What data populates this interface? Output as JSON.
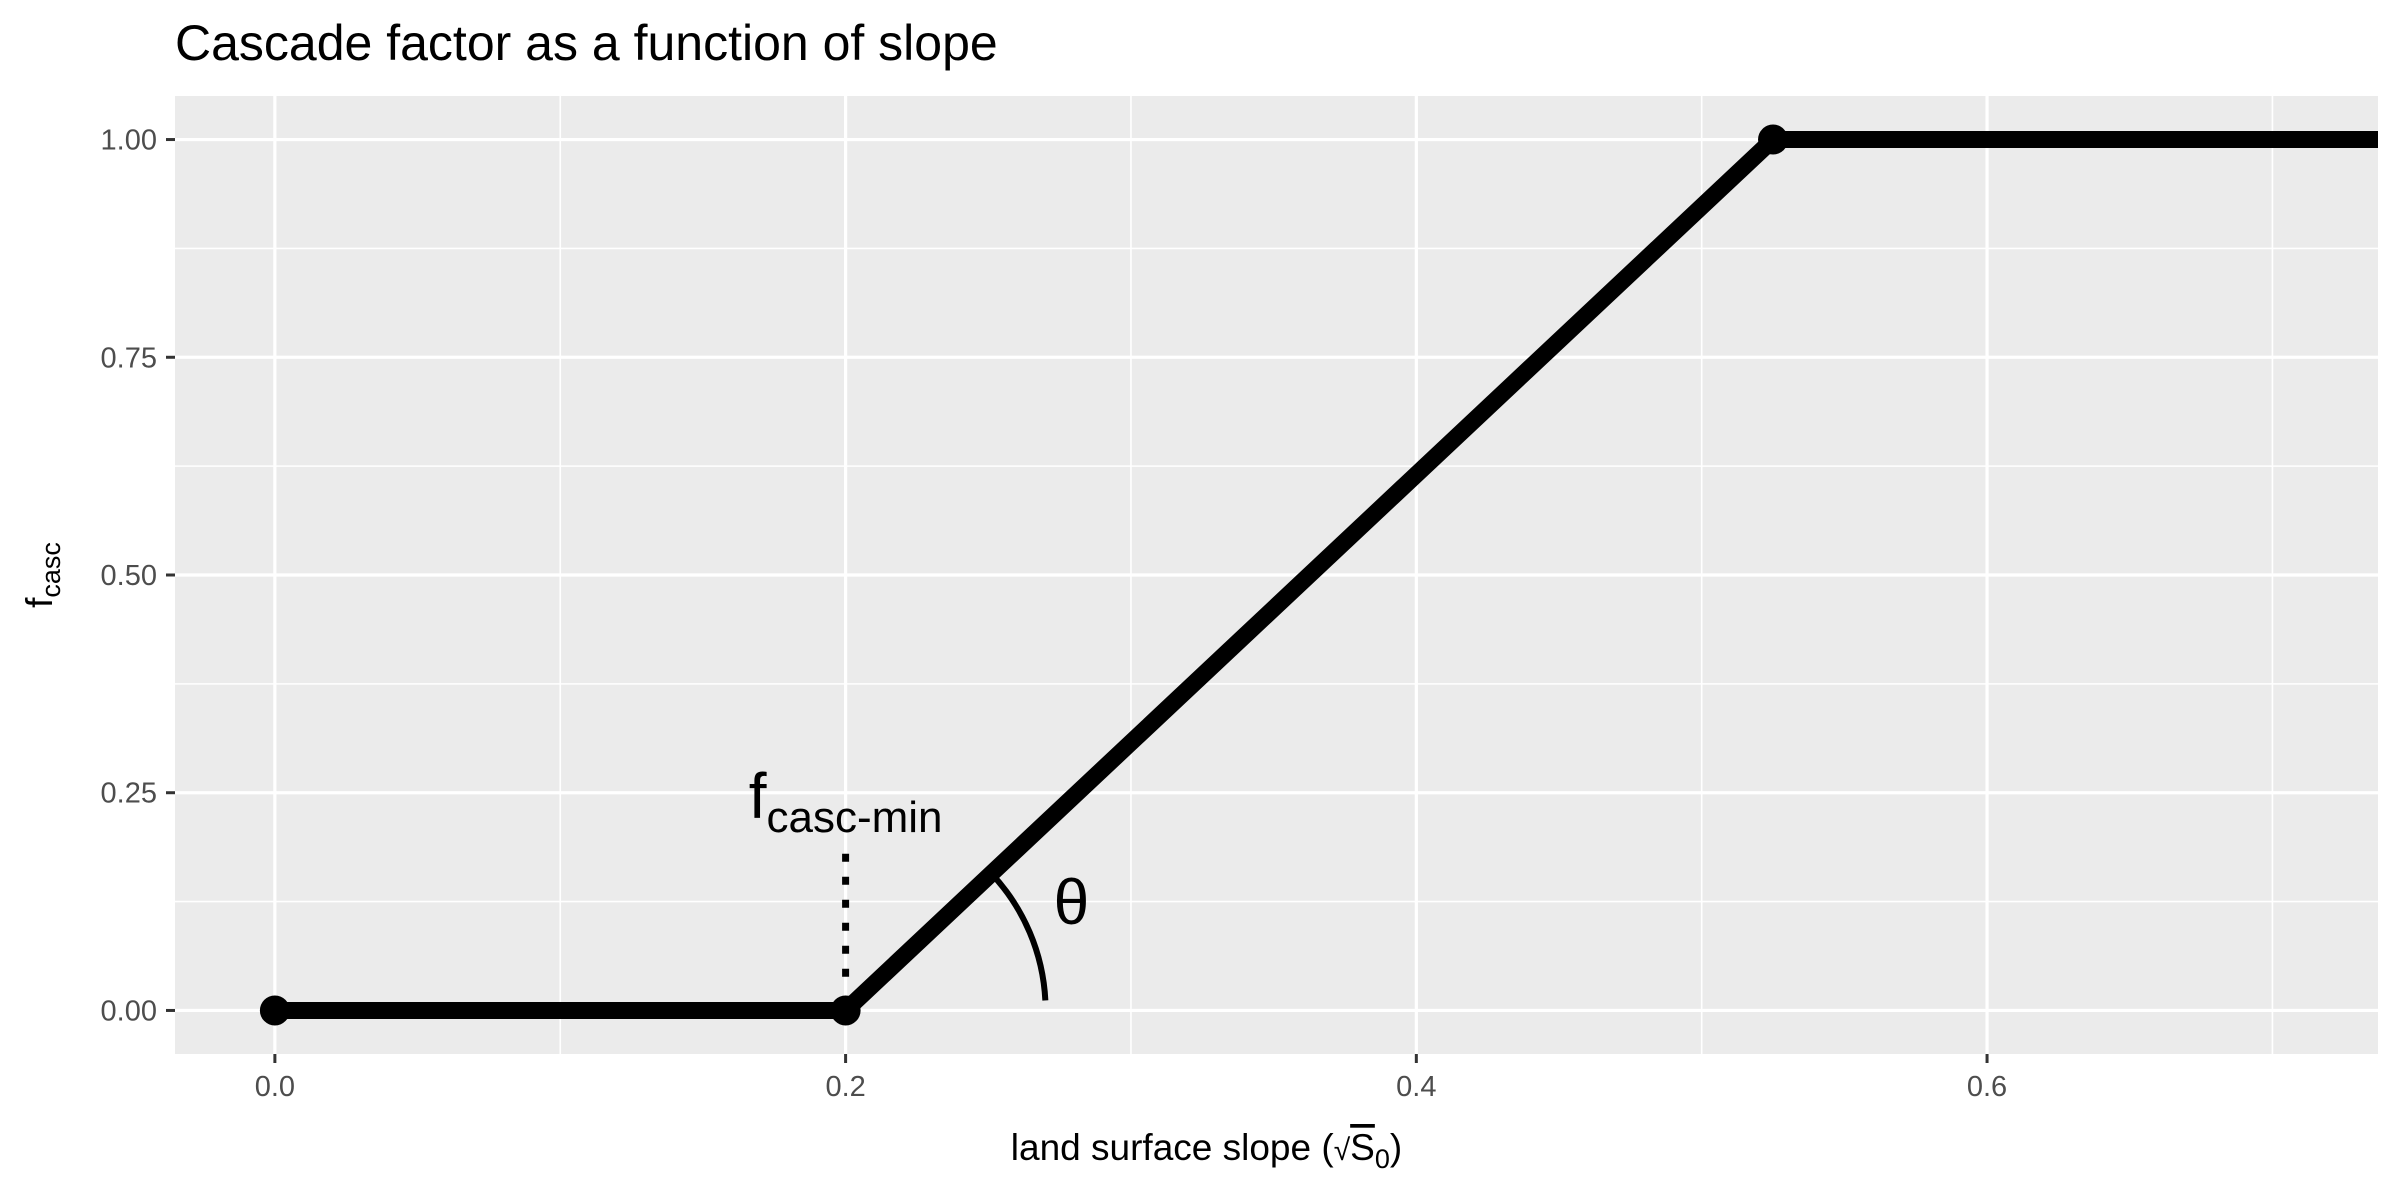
{
  "chart_data": {
    "type": "line",
    "title": "Cascade factor as a function of slope",
    "xlabel": {
      "prefix": "land surface slope (",
      "symbol": "S",
      "subscript": "0",
      "suffix": ")"
    },
    "ylabel": {
      "base": "f",
      "subscript": "casc"
    },
    "xlim": [
      -0.035,
      0.737
    ],
    "ylim": [
      -0.05,
      1.05
    ],
    "x_ticks": [
      0.0,
      0.2,
      0.4,
      0.6
    ],
    "x_tick_labels": [
      "0.0",
      "0.2",
      "0.4",
      "0.6"
    ],
    "y_ticks": [
      0.0,
      0.25,
      0.5,
      0.75,
      1.0
    ],
    "y_tick_labels": [
      "0.00",
      "0.25",
      "0.50",
      "0.75",
      "1.00"
    ],
    "grid": true,
    "series": [
      {
        "x": [
          0.0,
          0.2,
          0.525,
          0.737
        ],
        "y": [
          0.0,
          0.0,
          1.0,
          1.0
        ]
      }
    ],
    "points": [
      {
        "x": 0.0,
        "y": 0.0
      },
      {
        "x": 0.2,
        "y": 0.0
      },
      {
        "x": 0.525,
        "y": 1.0
      }
    ],
    "annotations": {
      "fcasc_min": {
        "base": "f",
        "subscript": "casc-min",
        "x": 0.2,
        "y": 0.23
      },
      "dotted_line": {
        "x": 0.2,
        "y_from": 0.03,
        "y_to": 0.18
      },
      "theta": {
        "label": "θ",
        "x": 0.275,
        "y": 0.12
      },
      "arc": {
        "center_x": 0.2,
        "center_y": 0.0
      }
    },
    "colors": {
      "panel": "#ebebeb",
      "grid": "#ffffff",
      "line": "#000000",
      "tick_text": "#4d4d4d"
    }
  }
}
